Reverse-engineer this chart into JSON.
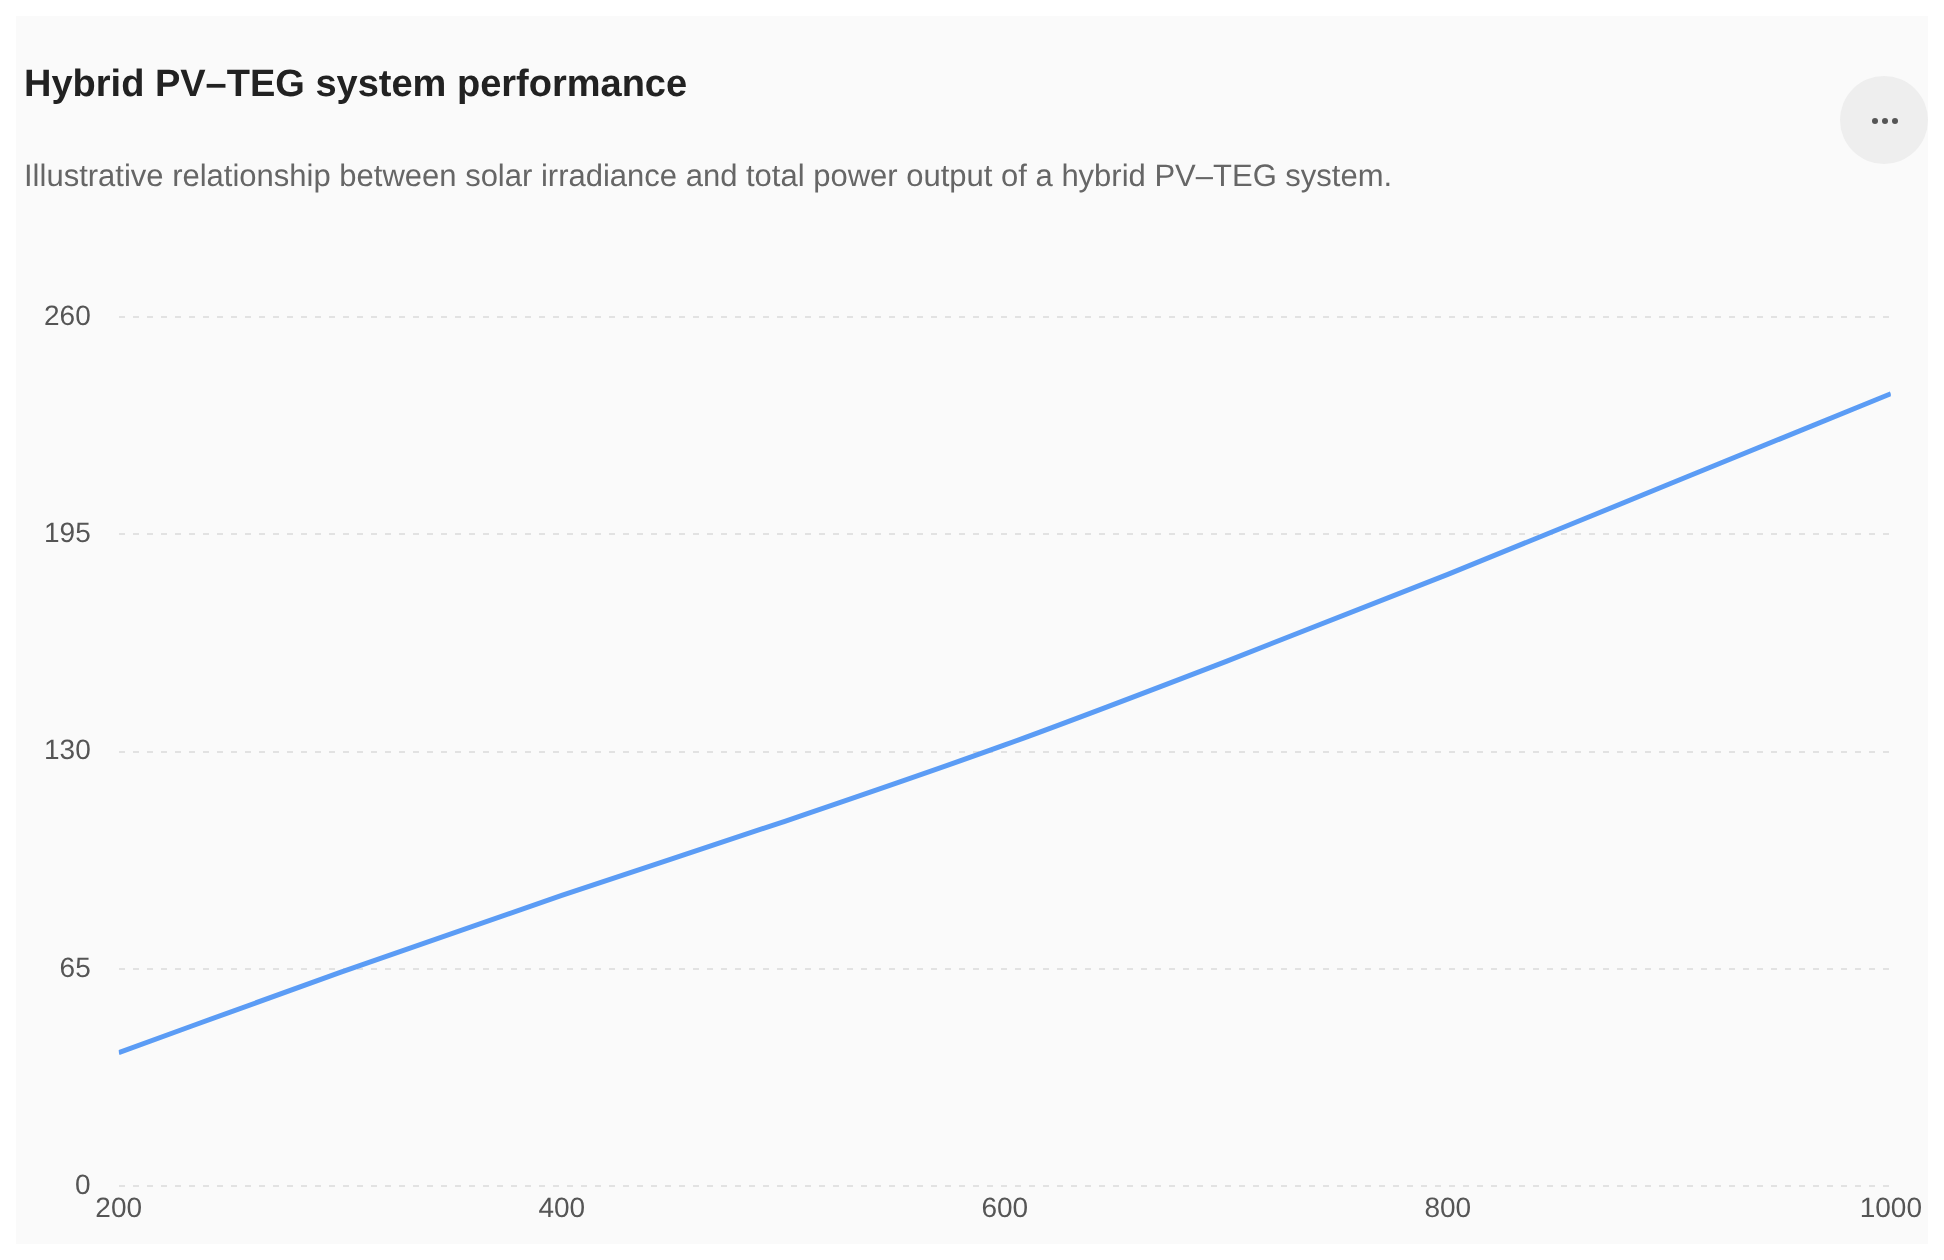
{
  "chart_data": {
    "type": "line",
    "title": "Hybrid PV–TEG system performance",
    "subtitle": "Illustrative relationship between solar irradiance and total power output of a hybrid PV–TEG system.",
    "x": [
      200,
      300,
      400,
      500,
      600,
      700,
      800,
      900,
      1000
    ],
    "series": [
      {
        "color": "#5b9cf5",
        "values": [
          40,
          64,
          87,
          109,
          132,
          157,
          183,
          210,
          237
        ]
      }
    ],
    "xlim": [
      200,
      1000
    ],
    "xticks": [
      200,
      400,
      600,
      800,
      1000
    ],
    "ylim": [
      0,
      260
    ],
    "yticks": [
      0,
      65,
      130,
      195,
      260
    ],
    "grid": "y",
    "legend": false,
    "marker": "none",
    "line_style": "solid"
  }
}
